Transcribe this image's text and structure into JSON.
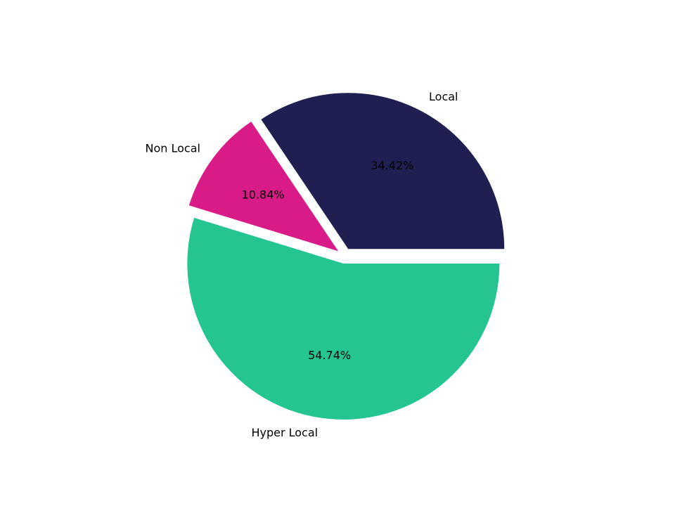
{
  "chart_data": {
    "type": "pie",
    "categories": [
      "Local",
      "Non Local",
      "Hyper Local"
    ],
    "values": [
      34.42,
      10.84,
      54.74
    ],
    "value_labels": [
      "34.42%",
      "10.84%",
      "54.74%"
    ],
    "colors": [
      "#1f1f52",
      "#d81b87",
      "#25c592"
    ]
  }
}
